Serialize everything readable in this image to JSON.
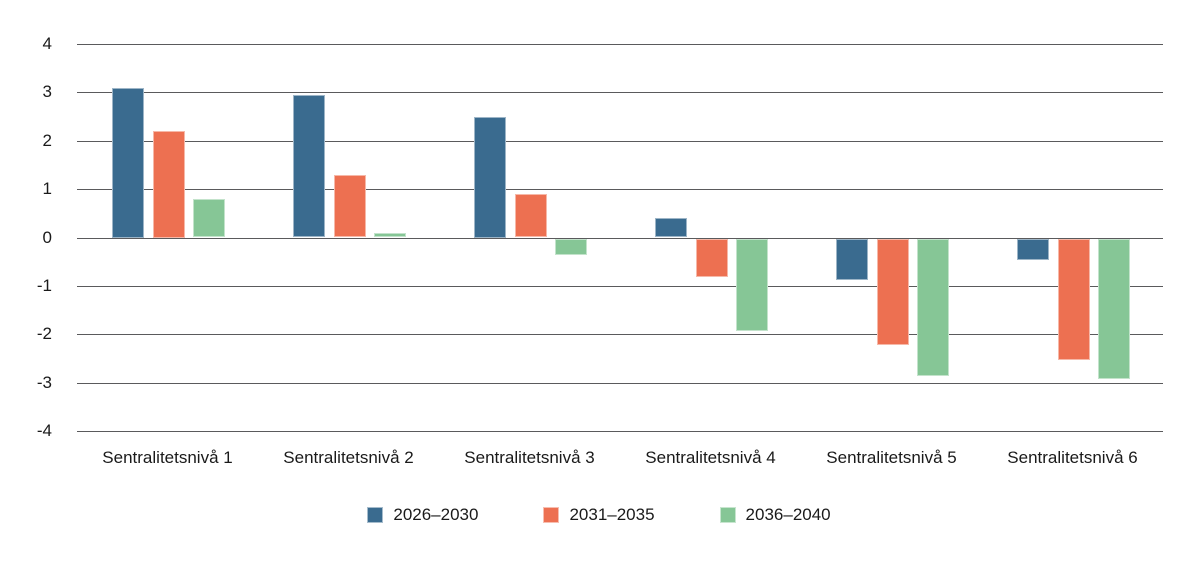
{
  "chart_data": {
    "type": "bar",
    "title": "",
    "xlabel": "",
    "ylabel": "",
    "categories": [
      "Sentralitetsnivå 1",
      "Sentralitetsnivå 2",
      "Sentralitetsnivå 3",
      "Sentralitetsnivå 4",
      "Sentralitetsnivå 5",
      "Sentralitetsnivå 6"
    ],
    "series": [
      {
        "name": "2026–2030",
        "color": "#3A6B8F",
        "values": [
          3.1,
          2.95,
          2.5,
          0.4,
          -0.85,
          -0.45
        ]
      },
      {
        "name": "2031–2035",
        "color": "#ED7051",
        "values": [
          2.2,
          1.3,
          0.9,
          -0.8,
          -2.2,
          -2.5
        ]
      },
      {
        "name": "2036–2040",
        "color": "#86C696",
        "values": [
          0.8,
          0.1,
          -0.35,
          -1.9,
          -2.85,
          -2.9
        ]
      }
    ],
    "ylim": [
      -4,
      4
    ],
    "yticks": [
      4,
      3,
      2,
      1,
      0,
      -1,
      -2,
      -3,
      -4
    ],
    "grid": true,
    "gridline_color": "#5a5a5c",
    "text_color": "#1a1a1a",
    "background_color": "#ffffff",
    "legend_position": "bottom-center"
  }
}
